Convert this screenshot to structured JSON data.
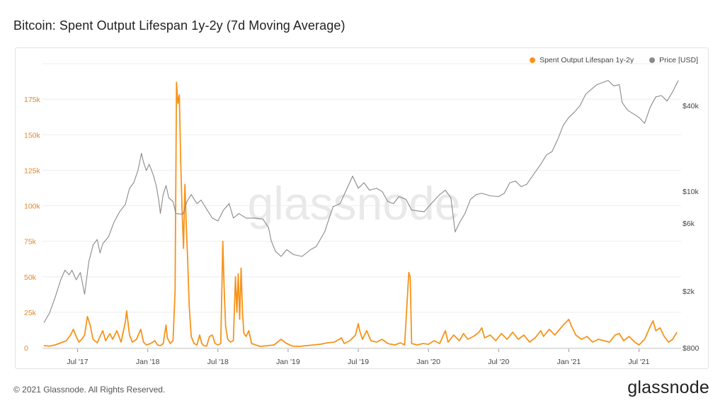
{
  "page": {
    "title": "Bitcoin: Spent Output Lifespan 1y-2y (7d Moving Average)",
    "copyright": "© 2021 Glassnode. All Rights Reserved.",
    "brand": "glassnode",
    "watermark": "glassnode"
  },
  "colors": {
    "sol": "#f7931a",
    "price": "#8a8a8a",
    "left_axis_text": "#e0892e",
    "gridline": "#eeeeee"
  },
  "chart_data": {
    "type": "line",
    "title": "Bitcoin: Spent Output Lifespan 1y-2y (7d Moving Average)",
    "legend": [
      {
        "name": "Spent Output Lifespan 1y-2y",
        "color": "#f7931a"
      },
      {
        "name": "Price [USD]",
        "color": "#8a8a8a"
      }
    ],
    "legend_position": "top-right",
    "x_ticks": [
      "Jul '17",
      "Jan '18",
      "Jul '18",
      "Jan '19",
      "Jul '19",
      "Jan '20",
      "Jul '20",
      "Jan '21",
      "Jul '21"
    ],
    "x_range": [
      2017.25,
      2021.8
    ],
    "y_left": {
      "ticks": [
        "0",
        "25k",
        "50k",
        "75k",
        "100k",
        "125k",
        "150k",
        "175k"
      ],
      "range": [
        0,
        200000
      ]
    },
    "y_right": {
      "ticks": [
        "$800",
        "$2k",
        "$6k",
        "$10k",
        "$40k"
      ],
      "scale": "log"
    },
    "grid": true,
    "series": [
      {
        "name": "Spent Output Lifespan 1y-2y",
        "axis": "left",
        "points": [
          [
            2017.26,
            1500
          ],
          [
            2017.3,
            1200
          ],
          [
            2017.34,
            2000
          ],
          [
            2017.38,
            3500
          ],
          [
            2017.42,
            5000
          ],
          [
            2017.45,
            9000
          ],
          [
            2017.47,
            13000
          ],
          [
            2017.49,
            8000
          ],
          [
            2017.51,
            4000
          ],
          [
            2017.53,
            6000
          ],
          [
            2017.55,
            9000
          ],
          [
            2017.57,
            22000
          ],
          [
            2017.59,
            16000
          ],
          [
            2017.61,
            6000
          ],
          [
            2017.64,
            3500
          ],
          [
            2017.66,
            8000
          ],
          [
            2017.68,
            12000
          ],
          [
            2017.7,
            5000
          ],
          [
            2017.73,
            10000
          ],
          [
            2017.75,
            6000
          ],
          [
            2017.78,
            12000
          ],
          [
            2017.81,
            4000
          ],
          [
            2017.84,
            18000
          ],
          [
            2017.85,
            26000
          ],
          [
            2017.87,
            9000
          ],
          [
            2017.89,
            4000
          ],
          [
            2017.92,
            6000
          ],
          [
            2017.95,
            13000
          ],
          [
            2017.97,
            4000
          ],
          [
            2017.99,
            2000
          ],
          [
            2018.02,
            3000
          ],
          [
            2018.05,
            5000
          ],
          [
            2018.07,
            2000
          ],
          [
            2018.09,
            1500
          ],
          [
            2018.11,
            3000
          ],
          [
            2018.13,
            16000
          ],
          [
            2018.14,
            7000
          ],
          [
            2018.16,
            3000
          ],
          [
            2018.18,
            5000
          ],
          [
            2018.195,
            40000
          ],
          [
            2018.205,
            187000
          ],
          [
            2018.215,
            172000
          ],
          [
            2018.225,
            178000
          ],
          [
            2018.235,
            130000
          ],
          [
            2018.245,
            95000
          ],
          [
            2018.255,
            70000
          ],
          [
            2018.265,
            115000
          ],
          [
            2018.275,
            85000
          ],
          [
            2018.285,
            60000
          ],
          [
            2018.295,
            30000
          ],
          [
            2018.31,
            8000
          ],
          [
            2018.33,
            3000
          ],
          [
            2018.35,
            2000
          ],
          [
            2018.37,
            9000
          ],
          [
            2018.385,
            3000
          ],
          [
            2018.4,
            1500
          ],
          [
            2018.42,
            1200
          ],
          [
            2018.44,
            8000
          ],
          [
            2018.46,
            9000
          ],
          [
            2018.48,
            3000
          ],
          [
            2018.5,
            2000
          ],
          [
            2018.52,
            3000
          ],
          [
            2018.535,
            75000
          ],
          [
            2018.545,
            40000
          ],
          [
            2018.555,
            15000
          ],
          [
            2018.57,
            6000
          ],
          [
            2018.59,
            4000
          ],
          [
            2018.61,
            5000
          ],
          [
            2018.625,
            50000
          ],
          [
            2018.635,
            25000
          ],
          [
            2018.645,
            52000
          ],
          [
            2018.655,
            20000
          ],
          [
            2018.665,
            56000
          ],
          [
            2018.675,
            25000
          ],
          [
            2018.685,
            10000
          ],
          [
            2018.7,
            8000
          ],
          [
            2018.72,
            12000
          ],
          [
            2018.74,
            3000
          ],
          [
            2018.77,
            2000
          ],
          [
            2018.8,
            1000
          ],
          [
            2018.85,
            1500
          ],
          [
            2018.9,
            2000
          ],
          [
            2018.95,
            6000
          ],
          [
            2018.99,
            3000
          ],
          [
            2019.03,
            1200
          ],
          [
            2019.08,
            1000
          ],
          [
            2019.13,
            1500
          ],
          [
            2019.18,
            2000
          ],
          [
            2019.23,
            2500
          ],
          [
            2019.28,
            3500
          ],
          [
            2019.33,
            4000
          ],
          [
            2019.38,
            7000
          ],
          [
            2019.4,
            3000
          ],
          [
            2019.44,
            5000
          ],
          [
            2019.48,
            9000
          ],
          [
            2019.5,
            17000
          ],
          [
            2019.51,
            12000
          ],
          [
            2019.53,
            6000
          ],
          [
            2019.56,
            12000
          ],
          [
            2019.59,
            5000
          ],
          [
            2019.63,
            4000
          ],
          [
            2019.67,
            6000
          ],
          [
            2019.71,
            3000
          ],
          [
            2019.76,
            2000
          ],
          [
            2019.8,
            3500
          ],
          [
            2019.83,
            2000
          ],
          [
            2019.86,
            53000
          ],
          [
            2019.87,
            50000
          ],
          [
            2019.88,
            3000
          ],
          [
            2019.92,
            2000
          ],
          [
            2019.96,
            3000
          ],
          [
            2020.0,
            2500
          ],
          [
            2020.04,
            5000
          ],
          [
            2020.08,
            3000
          ],
          [
            2020.12,
            12000
          ],
          [
            2020.14,
            4000
          ],
          [
            2020.18,
            9000
          ],
          [
            2020.22,
            5000
          ],
          [
            2020.25,
            10000
          ],
          [
            2020.28,
            6000
          ],
          [
            2020.32,
            8000
          ],
          [
            2020.36,
            11000
          ],
          [
            2020.38,
            14000
          ],
          [
            2020.4,
            7000
          ],
          [
            2020.44,
            9000
          ],
          [
            2020.48,
            5000
          ],
          [
            2020.52,
            10000
          ],
          [
            2020.56,
            6000
          ],
          [
            2020.6,
            11000
          ],
          [
            2020.64,
            6000
          ],
          [
            2020.68,
            9000
          ],
          [
            2020.72,
            4000
          ],
          [
            2020.76,
            7000
          ],
          [
            2020.8,
            12000
          ],
          [
            2020.82,
            8000
          ],
          [
            2020.86,
            13000
          ],
          [
            2020.9,
            9000
          ],
          [
            2020.96,
            16000
          ],
          [
            2021.0,
            20000
          ],
          [
            2021.02,
            15000
          ],
          [
            2021.05,
            9000
          ],
          [
            2021.09,
            6000
          ],
          [
            2021.13,
            8000
          ],
          [
            2021.17,
            4000
          ],
          [
            2021.21,
            6000
          ],
          [
            2021.25,
            5000
          ],
          [
            2021.29,
            4000
          ],
          [
            2021.33,
            9000
          ],
          [
            2021.36,
            10000
          ],
          [
            2021.39,
            5000
          ],
          [
            2021.43,
            8000
          ],
          [
            2021.47,
            4000
          ],
          [
            2021.5,
            2000
          ],
          [
            2021.54,
            6000
          ],
          [
            2021.58,
            15000
          ],
          [
            2021.6,
            19000
          ],
          [
            2021.62,
            12000
          ],
          [
            2021.65,
            14000
          ],
          [
            2021.68,
            8000
          ],
          [
            2021.71,
            4000
          ],
          [
            2021.74,
            6000
          ],
          [
            2021.77,
            11000
          ]
        ]
      },
      {
        "name": "Price [USD]",
        "axis": "right",
        "points": [
          [
            2017.26,
            1200
          ],
          [
            2017.3,
            1400
          ],
          [
            2017.34,
            1800
          ],
          [
            2017.38,
            2400
          ],
          [
            2017.41,
            2800
          ],
          [
            2017.44,
            2600
          ],
          [
            2017.46,
            2800
          ],
          [
            2017.49,
            2400
          ],
          [
            2017.52,
            2700
          ],
          [
            2017.55,
            1900
          ],
          [
            2017.58,
            3200
          ],
          [
            2017.61,
            4200
          ],
          [
            2017.64,
            4600
          ],
          [
            2017.66,
            3700
          ],
          [
            2017.68,
            4300
          ],
          [
            2017.72,
            4800
          ],
          [
            2017.76,
            6100
          ],
          [
            2017.8,
            7200
          ],
          [
            2017.84,
            8100
          ],
          [
            2017.87,
            10500
          ],
          [
            2017.9,
            11500
          ],
          [
            2017.93,
            14000
          ],
          [
            2017.955,
            18500
          ],
          [
            2017.97,
            16000
          ],
          [
            2017.99,
            14000
          ],
          [
            2018.01,
            15500
          ],
          [
            2018.04,
            13000
          ],
          [
            2018.06,
            11000
          ],
          [
            2018.08,
            8500
          ],
          [
            2018.09,
            7000
          ],
          [
            2018.11,
            9500
          ],
          [
            2018.13,
            11000
          ],
          [
            2018.15,
            9000
          ],
          [
            2018.18,
            8500
          ],
          [
            2018.2,
            7000
          ],
          [
            2018.25,
            6900
          ],
          [
            2018.28,
            8500
          ],
          [
            2018.31,
            9500
          ],
          [
            2018.35,
            8200
          ],
          [
            2018.38,
            8700
          ],
          [
            2018.42,
            7500
          ],
          [
            2018.46,
            6500
          ],
          [
            2018.5,
            6200
          ],
          [
            2018.54,
            7400
          ],
          [
            2018.58,
            8200
          ],
          [
            2018.61,
            6500
          ],
          [
            2018.65,
            7000
          ],
          [
            2018.7,
            6500
          ],
          [
            2018.76,
            6500
          ],
          [
            2018.82,
            6400
          ],
          [
            2018.86,
            5600
          ],
          [
            2018.88,
            4500
          ],
          [
            2018.91,
            3800
          ],
          [
            2018.95,
            3500
          ],
          [
            2018.99,
            3900
          ],
          [
            2019.04,
            3600
          ],
          [
            2019.1,
            3500
          ],
          [
            2019.16,
            3900
          ],
          [
            2019.2,
            4100
          ],
          [
            2019.26,
            5200
          ],
          [
            2019.32,
            7800
          ],
          [
            2019.37,
            8200
          ],
          [
            2019.42,
            10500
          ],
          [
            2019.46,
            12800
          ],
          [
            2019.5,
            10500
          ],
          [
            2019.54,
            11500
          ],
          [
            2019.58,
            10200
          ],
          [
            2019.63,
            10500
          ],
          [
            2019.67,
            10000
          ],
          [
            2019.71,
            8500
          ],
          [
            2019.75,
            8200
          ],
          [
            2019.79,
            9200
          ],
          [
            2019.84,
            8800
          ],
          [
            2019.88,
            7400
          ],
          [
            2019.92,
            7300
          ],
          [
            2019.97,
            7200
          ],
          [
            2020.02,
            8200
          ],
          [
            2020.08,
            9500
          ],
          [
            2020.12,
            10200
          ],
          [
            2020.16,
            9000
          ],
          [
            2020.19,
            5200
          ],
          [
            2020.22,
            6000
          ],
          [
            2020.26,
            7000
          ],
          [
            2020.3,
            8800
          ],
          [
            2020.34,
            9500
          ],
          [
            2020.38,
            9700
          ],
          [
            2020.44,
            9300
          ],
          [
            2020.5,
            9200
          ],
          [
            2020.54,
            9700
          ],
          [
            2020.58,
            11500
          ],
          [
            2020.62,
            11800
          ],
          [
            2020.66,
            10800
          ],
          [
            2020.7,
            11200
          ],
          [
            2020.75,
            13200
          ],
          [
            2020.8,
            15500
          ],
          [
            2020.84,
            18000
          ],
          [
            2020.88,
            19000
          ],
          [
            2020.92,
            23000
          ],
          [
            2020.96,
            29000
          ],
          [
            2021.0,
            33000
          ],
          [
            2021.04,
            36000
          ],
          [
            2021.08,
            40000
          ],
          [
            2021.12,
            48000
          ],
          [
            2021.16,
            52000
          ],
          [
            2021.2,
            56000
          ],
          [
            2021.24,
            58000
          ],
          [
            2021.28,
            60000
          ],
          [
            2021.32,
            55000
          ],
          [
            2021.36,
            56000
          ],
          [
            2021.38,
            42000
          ],
          [
            2021.42,
            37000
          ],
          [
            2021.46,
            35000
          ],
          [
            2021.5,
            33000
          ],
          [
            2021.54,
            30000
          ],
          [
            2021.58,
            39000
          ],
          [
            2021.62,
            46000
          ],
          [
            2021.66,
            47000
          ],
          [
            2021.7,
            43000
          ],
          [
            2021.74,
            50000
          ],
          [
            2021.78,
            60000
          ]
        ]
      }
    ]
  }
}
